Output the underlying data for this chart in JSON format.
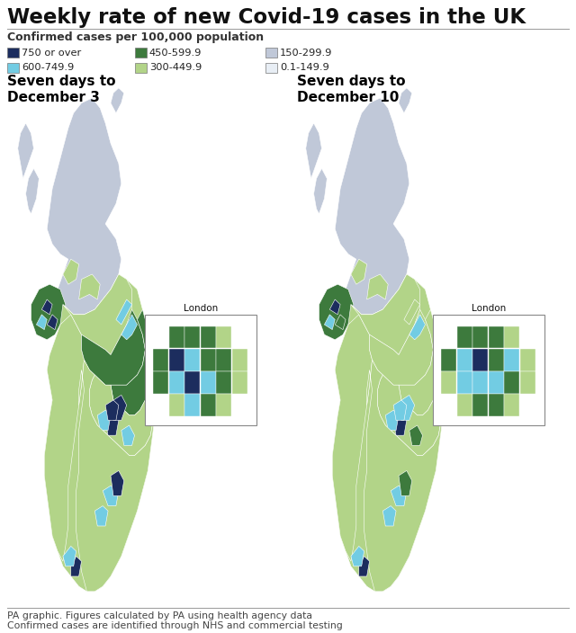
{
  "title": "Weekly rate of new Covid-19 cases in the UK",
  "subtitle": "Confirmed cases per 100,000 population",
  "legend_items": [
    {
      "label": "750 or over",
      "color": "#1c2d5e"
    },
    {
      "label": "600-749.9",
      "color": "#72cce3"
    },
    {
      "label": "450-599.9",
      "color": "#3d7a3d"
    },
    {
      "label": "300-449.9",
      "color": "#b2d488"
    },
    {
      "label": "150-299.9",
      "color": "#c0c8d8"
    },
    {
      "label": "0.1-149.9",
      "color": "#e8eef5"
    }
  ],
  "map1_title": "Seven days to\nDecember 3",
  "map2_title": "Seven days to\nDecember 10",
  "london_label": "London",
  "footer_line1": "PA graphic. Figures calculated by PA using health agency data",
  "footer_line2": "Confirmed cases are identified through NHS and commercial testing",
  "bg_color": "#ffffff",
  "title_color": "#111111",
  "colors": {
    "vhigh": "#1c2d5e",
    "high": "#72cce3",
    "mdhigh": "#3d7a3d",
    "med": "#b2d488",
    "low": "#c0c8d8",
    "vlow": "#e8eef5"
  }
}
